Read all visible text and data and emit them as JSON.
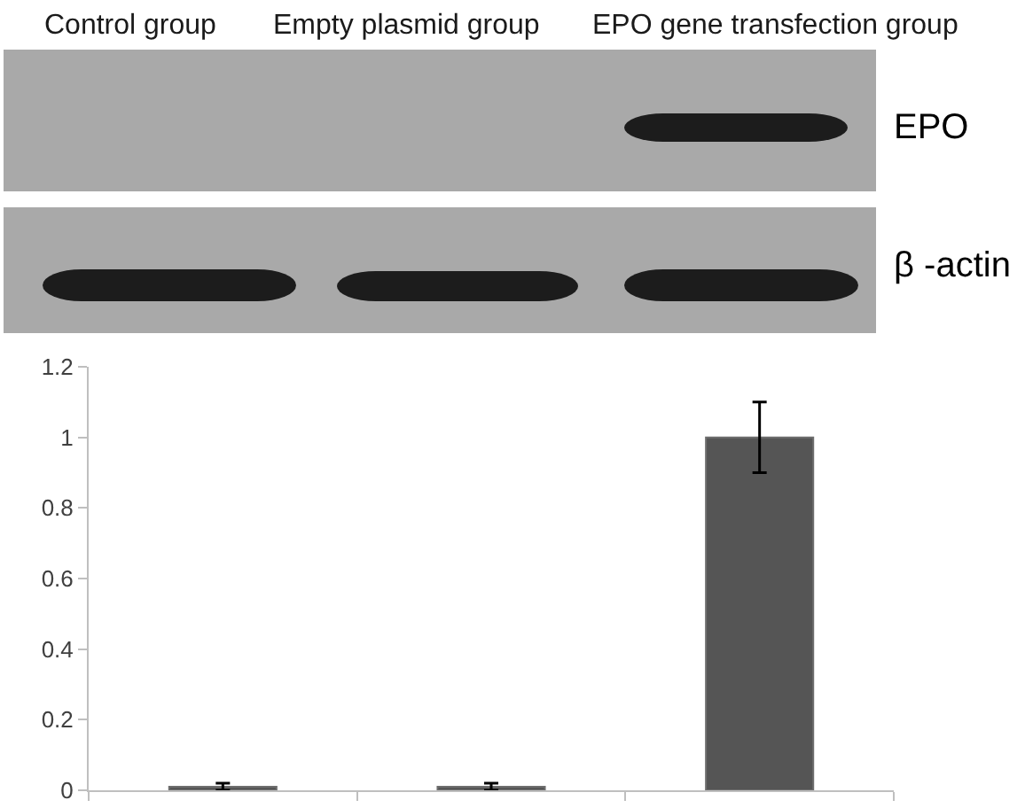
{
  "chart_data": {
    "type": "bar",
    "categories": [
      null,
      null,
      null
    ],
    "values": [
      0.01,
      0.01,
      1.0
    ],
    "errors": [
      0.01,
      0.01,
      0.1
    ],
    "color": "#555555",
    "ylim": [
      0,
      1.2
    ],
    "yticks": [
      0,
      0.2,
      0.4,
      0.6,
      0.8,
      1,
      1.2
    ],
    "tick_labels": "y",
    "annotations": [
      "Control group",
      "Empty plasmid group",
      "EPO gene transfection group",
      "EPO",
      "β -actin"
    ]
  }
}
